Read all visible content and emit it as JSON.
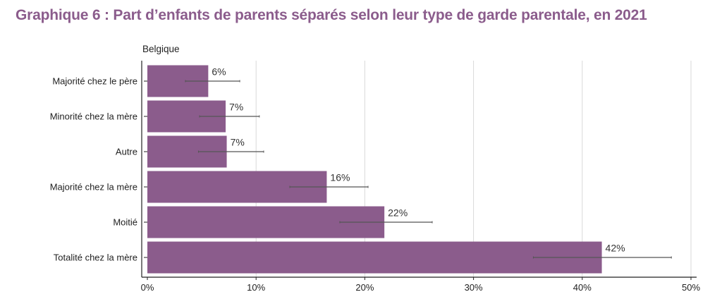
{
  "title": "Graphique 6 : Part d’enfants de parents séparés selon leur type de garde parentale, en 2021",
  "colors": {
    "bar": "#8b5c8c",
    "title": "#8b5c8c",
    "grid": "#d9d9d9",
    "errorbar": "#555555",
    "axis": "#222222"
  },
  "chart_data": {
    "type": "bar",
    "orientation": "horizontal",
    "title": "Graphique 6 : Part d’enfants de parents séparés selon leur type de garde parentale, en 2021",
    "subtitle": "Belgique",
    "categories": [
      "Majorité chez le père",
      "Minorité chez la mère",
      "Autre",
      "Majorité chez la mère",
      "Moitié",
      "Totalité chez la mère"
    ],
    "values": [
      5.6,
      7.2,
      7.3,
      16.5,
      21.8,
      41.8
    ],
    "value_labels": [
      "6%",
      "7%",
      "7%",
      "16%",
      "22%",
      "42%"
    ],
    "error_low": [
      3.5,
      4.8,
      4.7,
      13.1,
      17.7,
      35.5
    ],
    "error_high": [
      8.5,
      10.3,
      10.7,
      20.3,
      26.2,
      48.2
    ],
    "xlim": [
      0,
      50
    ],
    "xticks": [
      0,
      10,
      20,
      30,
      40,
      50
    ],
    "xtick_labels": [
      "0%",
      "10%",
      "20%",
      "30%",
      "40%",
      "50%"
    ],
    "xlabel": "",
    "ylabel": "",
    "grid": "vertical"
  }
}
